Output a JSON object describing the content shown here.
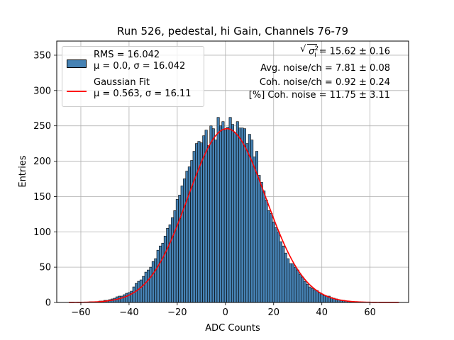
{
  "chart_data": {
    "type": "bar",
    "title": "Run 526, pedestal, hi Gain, Channels 76-79",
    "xlabel": "ADC Counts",
    "ylabel": "Entries",
    "xlim": [
      -70,
      76
    ],
    "ylim": [
      0,
      370
    ],
    "xticks": [
      -60,
      -40,
      -20,
      0,
      20,
      40,
      60
    ],
    "yticks": [
      0,
      50,
      100,
      150,
      200,
      250,
      300,
      350
    ],
    "grid": true,
    "legend_position": "top-left",
    "bin_width": 1,
    "histogram": {
      "name_line1": "RMS = 16.042",
      "name_line2": "μ = 0.0, σ = 16.042",
      "bin_centers": [
        -56,
        -55,
        -54,
        -53,
        -52,
        -51,
        -50,
        -49,
        -48,
        -47,
        -46,
        -45,
        -44,
        -43,
        -42,
        -41,
        -40,
        -39,
        -38,
        -37,
        -36,
        -35,
        -34,
        -33,
        -32,
        -31,
        -30,
        -29,
        -28,
        -27,
        -26,
        -25,
        -24,
        -23,
        -22,
        -21,
        -20,
        -19,
        -18,
        -17,
        -16,
        -15,
        -14,
        -13,
        -12,
        -11,
        -10,
        -9,
        -8,
        -7,
        -6,
        -5,
        -4,
        -3,
        -2,
        -1,
        0,
        1,
        2,
        3,
        4,
        5,
        6,
        7,
        8,
        9,
        10,
        11,
        12,
        13,
        14,
        15,
        16,
        17,
        18,
        19,
        20,
        21,
        22,
        23,
        24,
        25,
        26,
        27,
        28,
        29,
        30,
        31,
        32,
        33,
        34,
        35,
        36,
        37,
        38,
        39,
        40,
        41,
        42,
        43,
        44,
        45,
        46,
        47,
        48,
        49,
        50,
        51,
        52,
        53,
        54
      ],
      "counts": [
        1,
        1,
        1,
        1,
        2,
        2,
        3,
        3,
        4,
        5,
        6,
        8,
        9,
        9,
        11,
        13,
        14,
        16,
        22,
        27,
        30,
        32,
        37,
        43,
        46,
        50,
        58,
        62,
        74,
        80,
        84,
        94,
        105,
        110,
        120,
        130,
        146,
        152,
        165,
        175,
        186,
        192,
        201,
        214,
        225,
        228,
        226,
        236,
        244,
        222,
        250,
        246,
        230,
        262,
        250,
        256,
        244,
        248,
        262,
        252,
        240,
        256,
        247,
        247,
        246,
        225,
        238,
        230,
        206,
        214,
        180,
        170,
        158,
        145,
        130,
        126,
        114,
        106,
        100,
        86,
        80,
        70,
        62,
        55,
        55,
        50,
        46,
        40,
        36,
        30,
        26,
        22,
        20,
        18,
        17,
        14,
        12,
        10,
        9,
        9,
        7,
        6,
        5,
        4,
        3,
        3,
        2,
        2,
        1,
        1,
        1
      ],
      "color": "#4682b4",
      "edge_color": "#000000"
    },
    "fit": {
      "name_line1": "Gaussian Fit",
      "name_line2": "μ = 0.563, σ = 16.11",
      "mu": 0.563,
      "sigma": 16.11,
      "amplitude": 246,
      "x_range": [
        -65,
        72
      ],
      "color": "#ff0000"
    }
  },
  "annotations": {
    "line1_sqrt": "σ",
    "line1_sub": "i",
    "line1_sup": "2",
    "line1_value": "= 15.62 ± 0.16",
    "line2": "Avg. noise/ch = 7.81 ± 0.08",
    "line3": "Coh. noise/ch = 0.92 ± 0.24",
    "line4": "[%] Coh. noise = 11.75 ± 3.11"
  }
}
